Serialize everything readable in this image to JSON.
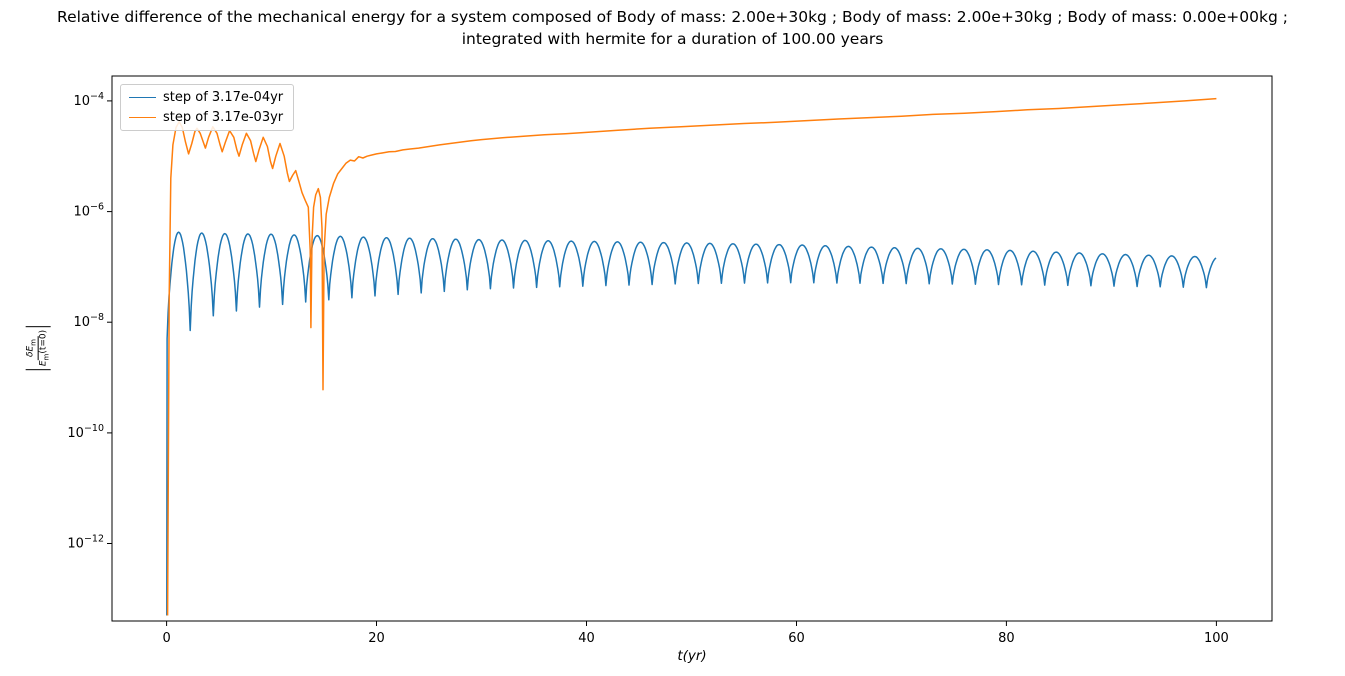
{
  "figure": {
    "title_line1": "Relative difference of the mechanical energy for a system composed of Body of mass: 2.00e+30kg ; Body of mass: 2.00e+30kg ; Body of mass: 0.00e+00kg ;",
    "title_line2": "integrated with hermite for a duration of 100.00 years"
  },
  "axis": {
    "xlabel": "t(yr)",
    "ylabel_numerator_main": "δE",
    "ylabel_numerator_sub": "m",
    "ylabel_denominator_main": "E",
    "ylabel_denominator_sub": "m",
    "ylabel_denominator_rest": "(t=0)"
  },
  "chart_data": {
    "type": "line",
    "title": "Relative difference of the mechanical energy for a system composed of Body of mass: 2.00e+30kg ; Body of mass: 2.00e+30kg ; Body of mass: 0.00e+00kg ; integrated with hermite for a duration of 100.00 years",
    "xlabel": "t(yr)",
    "ylabel": "|δE_m / E_m(t=0)|",
    "yscale": "log",
    "grid": false,
    "xlim": [
      -5.2,
      105.3
    ],
    "ylim_log10": [
      -13.4,
      -3.55
    ],
    "x_ticks": [
      0,
      20,
      40,
      60,
      80,
      100
    ],
    "y_ticks_exponents": [
      -4,
      -6,
      -8,
      -10,
      -12
    ],
    "legend": {
      "position": "upper left",
      "entries": [
        "step of 3.17e-04yr",
        "step of 3.17e-03yr"
      ]
    },
    "series": [
      {
        "name": "step of 3.17e-04yr",
        "color": "#1f77b4",
        "description": "oscillates between dip and peak envelopes with sharp log-scale cusps at dips",
        "generator": {
          "kind": "abs-sin-log",
          "t_start": 0.05,
          "t_end": 100,
          "period_yr": 2.2,
          "samples_per_period": 24,
          "shape_power": 0.7,
          "lead_in": [
            [
              0.02,
              5e-14
            ]
          ],
          "peak_envelope": [
            [
              0,
              4.3e-07
            ],
            [
              5,
              4e-07
            ],
            [
              10,
              3.9e-07
            ],
            [
              20,
              3.4e-07
            ],
            [
              30,
              3.1e-07
            ],
            [
              40,
              2.9e-07
            ],
            [
              50,
              2.7e-07
            ],
            [
              60,
              2.5e-07
            ],
            [
              70,
              2.2e-07
            ],
            [
              80,
              2e-07
            ],
            [
              90,
              1.7e-07
            ],
            [
              100,
              1.5e-07
            ]
          ],
          "dip_envelope": [
            [
              0,
              5e-09
            ],
            [
              2.2,
              7e-09
            ],
            [
              4.4,
              1.3e-08
            ],
            [
              8,
              1.8e-08
            ],
            [
              12,
              2.2e-08
            ],
            [
              16,
              2.6e-08
            ],
            [
              20,
              3e-08
            ],
            [
              30,
              4e-08
            ],
            [
              40,
              4.5e-08
            ],
            [
              50,
              5e-08
            ],
            [
              60,
              5.2e-08
            ],
            [
              70,
              5e-08
            ],
            [
              80,
              4.8e-08
            ],
            [
              90,
              4.5e-08
            ],
            [
              100,
              4.2e-08
            ]
          ]
        }
      },
      {
        "name": "step of 3.17e-03yr",
        "color": "#ff7f0e",
        "description": "oscillates ~1e-5..4e-5 until t≈13, deep cusps near t≈13.75 (8e-9) and t≈14.9 (6e-10), then smooth growth to ~1.1e-4 at t=100",
        "points": [
          [
            0.1,
            5e-14
          ],
          [
            0.25,
            3e-08
          ],
          [
            0.4,
            4e-06
          ],
          [
            0.6,
            1.6e-05
          ],
          [
            0.9,
            3.3e-05
          ],
          [
            1.2,
            4.2e-05
          ],
          [
            1.5,
            3.3e-05
          ],
          [
            1.8,
            1.8e-05
          ],
          [
            2.1,
            1.1e-05
          ],
          [
            2.4,
            1.7e-05
          ],
          [
            2.7,
            2.8e-05
          ],
          [
            2.9,
            3.2e-05
          ],
          [
            3.2,
            2.6e-05
          ],
          [
            3.5,
            1.8e-05
          ],
          [
            3.7,
            1.4e-05
          ],
          [
            4.0,
            2.2e-05
          ],
          [
            4.4,
            3.4e-05
          ],
          [
            4.8,
            2.6e-05
          ],
          [
            5.1,
            1.6e-05
          ],
          [
            5.3,
            1.2e-05
          ],
          [
            5.6,
            1.8e-05
          ],
          [
            6.0,
            2.9e-05
          ],
          [
            6.4,
            2.2e-05
          ],
          [
            6.7,
            1.3e-05
          ],
          [
            6.9,
            1e-05
          ],
          [
            7.2,
            1.6e-05
          ],
          [
            7.6,
            2.6e-05
          ],
          [
            8.0,
            1.9e-05
          ],
          [
            8.3,
            1.1e-05
          ],
          [
            8.5,
            8e-06
          ],
          [
            8.8,
            1.3e-05
          ],
          [
            9.2,
            2.2e-05
          ],
          [
            9.6,
            1.5e-05
          ],
          [
            9.9,
            8e-06
          ],
          [
            10.1,
            6e-06
          ],
          [
            10.4,
            1e-05
          ],
          [
            10.8,
            1.7e-05
          ],
          [
            11.2,
            1e-05
          ],
          [
            11.5,
            5e-06
          ],
          [
            11.7,
            3.5e-06
          ],
          [
            12.0,
            4.5e-06
          ],
          [
            12.3,
            5.5e-06
          ],
          [
            12.6,
            3.5e-06
          ],
          [
            12.9,
            2.2e-06
          ],
          [
            13.2,
            1.6e-06
          ],
          [
            13.5,
            1.2e-06
          ],
          [
            13.68,
            2e-07
          ],
          [
            13.75,
            8e-09
          ],
          [
            13.85,
            3e-07
          ],
          [
            14.0,
            1.2e-06
          ],
          [
            14.2,
            2e-06
          ],
          [
            14.45,
            2.6e-06
          ],
          [
            14.65,
            1.8e-06
          ],
          [
            14.8,
            5e-07
          ],
          [
            14.9,
            6e-10
          ],
          [
            15.0,
            2e-07
          ],
          [
            15.2,
            9e-07
          ],
          [
            15.5,
            1.8e-06
          ],
          [
            15.9,
            3.2e-06
          ],
          [
            16.3,
            4.8e-06
          ],
          [
            16.7,
            6e-06
          ],
          [
            17.1,
            7.5e-06
          ],
          [
            17.5,
            8.5e-06
          ],
          [
            17.9,
            8.2e-06
          ],
          [
            18.3,
            9.8e-06
          ],
          [
            18.7,
            9.3e-06
          ],
          [
            19.1,
            1e-05
          ],
          [
            19.5,
            1.05e-05
          ],
          [
            20.0,
            1.1e-05
          ],
          [
            20.6,
            1.15e-05
          ],
          [
            21.2,
            1.2e-05
          ],
          [
            21.8,
            1.22e-05
          ],
          [
            22.5,
            1.3e-05
          ],
          [
            23.2,
            1.35e-05
          ],
          [
            24.0,
            1.4e-05
          ],
          [
            25.0,
            1.5e-05
          ],
          [
            26,
            1.6e-05
          ],
          [
            27,
            1.7e-05
          ],
          [
            28,
            1.8e-05
          ],
          [
            29,
            1.9e-05
          ],
          [
            30,
            2e-05
          ],
          [
            32,
            2.15e-05
          ],
          [
            34,
            2.3e-05
          ],
          [
            36,
            2.45e-05
          ],
          [
            38,
            2.55e-05
          ],
          [
            40,
            2.7e-05
          ],
          [
            43,
            2.95e-05
          ],
          [
            46,
            3.2e-05
          ],
          [
            49,
            3.4e-05
          ],
          [
            52,
            3.65e-05
          ],
          [
            55,
            3.9e-05
          ],
          [
            58,
            4.1e-05
          ],
          [
            61,
            4.4e-05
          ],
          [
            64,
            4.7e-05
          ],
          [
            67,
            5e-05
          ],
          [
            70,
            5.3e-05
          ],
          [
            73,
            5.7e-05
          ],
          [
            76,
            6e-05
          ],
          [
            79,
            6.4e-05
          ],
          [
            82,
            6.9e-05
          ],
          [
            85,
            7.3e-05
          ],
          [
            88,
            7.9e-05
          ],
          [
            91,
            8.5e-05
          ],
          [
            94,
            9.2e-05
          ],
          [
            97,
            0.0001
          ],
          [
            100,
            0.00011
          ]
        ]
      }
    ]
  }
}
